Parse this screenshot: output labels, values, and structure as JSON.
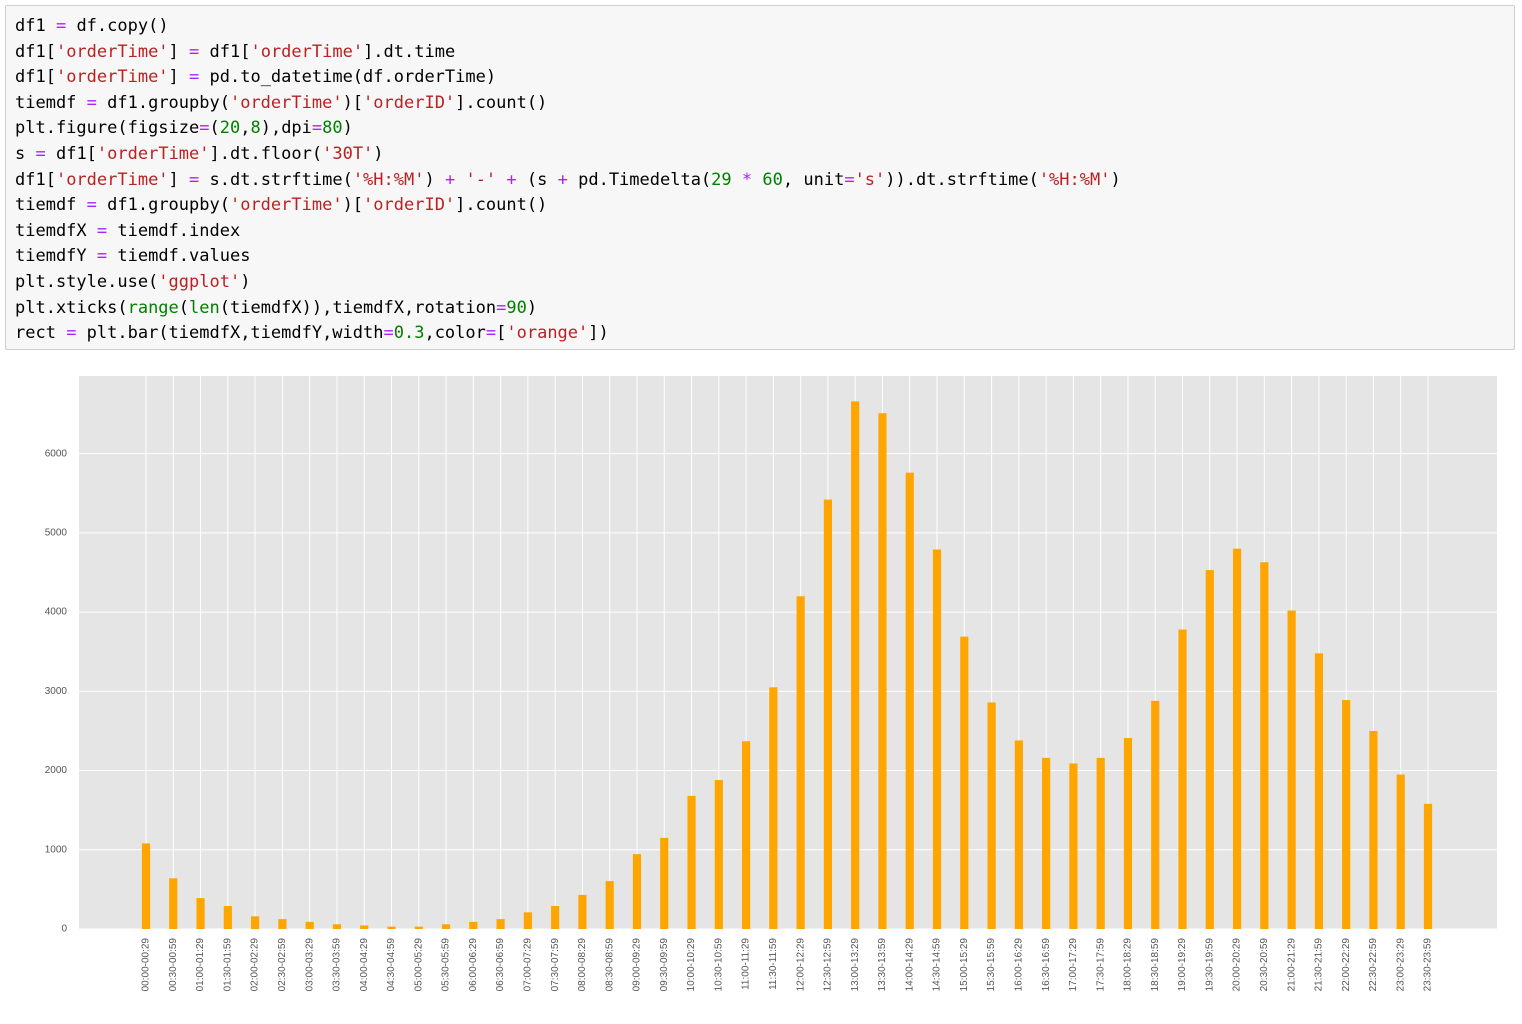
{
  "code": {
    "lines": [
      [
        [
          "df1 ",
          "#000000"
        ],
        [
          "=",
          "#aa22ff"
        ],
        [
          " df.copy()",
          "#000000"
        ]
      ],
      [
        [
          "df1[",
          "#000000"
        ],
        [
          "'orderTime'",
          "#ba2121"
        ],
        [
          "] ",
          "#000000"
        ],
        [
          "=",
          "#aa22ff"
        ],
        [
          " df1[",
          "#000000"
        ],
        [
          "'orderTime'",
          "#ba2121"
        ],
        [
          "].dt.time",
          "#000000"
        ]
      ],
      [
        [
          "df1[",
          "#000000"
        ],
        [
          "'orderTime'",
          "#ba2121"
        ],
        [
          "] ",
          "#000000"
        ],
        [
          "=",
          "#aa22ff"
        ],
        [
          " pd.to_datetime(df.orderTime)",
          "#000000"
        ]
      ],
      [
        [
          "tiemdf ",
          "#000000"
        ],
        [
          "=",
          "#aa22ff"
        ],
        [
          " df1.groupby(",
          "#000000"
        ],
        [
          "'orderTime'",
          "#ba2121"
        ],
        [
          ")[",
          "#000000"
        ],
        [
          "'orderID'",
          "#ba2121"
        ],
        [
          "].count()",
          "#000000"
        ]
      ],
      [
        [
          "plt.figure(figsize",
          "#000000"
        ],
        [
          "=",
          "#aa22ff"
        ],
        [
          "(",
          "#000000"
        ],
        [
          "20",
          "#008000"
        ],
        [
          ",",
          "#000000"
        ],
        [
          "8",
          "#008000"
        ],
        [
          "),dpi",
          "#000000"
        ],
        [
          "=",
          "#aa22ff"
        ],
        [
          "80",
          "#008000"
        ],
        [
          ")",
          "#000000"
        ]
      ],
      [
        [
          "s ",
          "#000000"
        ],
        [
          "=",
          "#aa22ff"
        ],
        [
          " df1[",
          "#000000"
        ],
        [
          "'orderTime'",
          "#ba2121"
        ],
        [
          "].dt.floor(",
          "#000000"
        ],
        [
          "'30T'",
          "#ba2121"
        ],
        [
          ")",
          "#000000"
        ]
      ],
      [
        [
          "df1[",
          "#000000"
        ],
        [
          "'orderTime'",
          "#ba2121"
        ],
        [
          "] ",
          "#000000"
        ],
        [
          "=",
          "#aa22ff"
        ],
        [
          " s.dt.strftime(",
          "#000000"
        ],
        [
          "'%H:%M'",
          "#ba2121"
        ],
        [
          ") ",
          "#000000"
        ],
        [
          "+",
          "#aa22ff"
        ],
        [
          " ",
          "#000000"
        ],
        [
          "'-'",
          "#ba2121"
        ],
        [
          " ",
          "#000000"
        ],
        [
          "+",
          "#aa22ff"
        ],
        [
          " (s ",
          "#000000"
        ],
        [
          "+",
          "#aa22ff"
        ],
        [
          " pd.Timedelta(",
          "#000000"
        ],
        [
          "29",
          "#008000"
        ],
        [
          " ",
          "#000000"
        ],
        [
          "*",
          "#aa22ff"
        ],
        [
          " ",
          "#000000"
        ],
        [
          "60",
          "#008000"
        ],
        [
          ", unit",
          "#000000"
        ],
        [
          "=",
          "#aa22ff"
        ],
        [
          "'s'",
          "#ba2121"
        ],
        [
          ")).dt.strftime(",
          "#000000"
        ],
        [
          "'%H:%M'",
          "#ba2121"
        ],
        [
          ")",
          "#000000"
        ]
      ],
      [
        [
          "tiemdf ",
          "#000000"
        ],
        [
          "=",
          "#aa22ff"
        ],
        [
          " df1.groupby(",
          "#000000"
        ],
        [
          "'orderTime'",
          "#ba2121"
        ],
        [
          ")[",
          "#000000"
        ],
        [
          "'orderID'",
          "#ba2121"
        ],
        [
          "].count()",
          "#000000"
        ]
      ],
      [
        [
          "tiemdfX ",
          "#000000"
        ],
        [
          "=",
          "#aa22ff"
        ],
        [
          " tiemdf.index",
          "#000000"
        ]
      ],
      [
        [
          "tiemdfY ",
          "#000000"
        ],
        [
          "=",
          "#aa22ff"
        ],
        [
          " tiemdf.values",
          "#000000"
        ]
      ],
      [
        [
          "plt.style.use(",
          "#000000"
        ],
        [
          "'ggplot'",
          "#ba2121"
        ],
        [
          ")",
          "#000000"
        ]
      ],
      [
        [
          "plt.xticks(",
          "#000000"
        ],
        [
          "range",
          "#008000"
        ],
        [
          "(",
          "#000000"
        ],
        [
          "len",
          "#008000"
        ],
        [
          "(tiemdfX)),tiemdfX,rotation",
          "#000000"
        ],
        [
          "=",
          "#aa22ff"
        ],
        [
          "90",
          "#008000"
        ],
        [
          ")",
          "#000000"
        ]
      ],
      [
        [
          "rect ",
          "#000000"
        ],
        [
          "=",
          "#aa22ff"
        ],
        [
          " plt.bar(tiemdfX,tiemdfY,width",
          "#000000"
        ],
        [
          "=",
          "#aa22ff"
        ],
        [
          "0.3",
          "#008000"
        ],
        [
          ",color",
          "#000000"
        ],
        [
          "=",
          "#aa22ff"
        ],
        [
          "[",
          "#000000"
        ],
        [
          "'orange'",
          "#ba2121"
        ],
        [
          "])",
          "#000000"
        ]
      ]
    ]
  },
  "chart_data": {
    "type": "bar",
    "color": "orange",
    "grid": true,
    "categories": [
      "00:00-00:29",
      "00:30-00:59",
      "01:00-01:29",
      "01:30-01:59",
      "02:00-02:29",
      "02:30-02:59",
      "03:00-03:29",
      "03:30-03:59",
      "04:00-04:29",
      "04:30-04:59",
      "05:00-05:29",
      "05:30-05:59",
      "06:00-06:29",
      "06:30-06:59",
      "07:00-07:29",
      "07:30-07:59",
      "08:00-08:29",
      "08:30-08:59",
      "09:00-09:29",
      "09:30-09:59",
      "10:00-10:29",
      "10:30-10:59",
      "11:00-11:29",
      "11:30-11:59",
      "12:00-12:29",
      "12:30-12:59",
      "13:00-13:29",
      "13:30-13:59",
      "14:00-14:29",
      "14:30-14:59",
      "15:00-15:29",
      "15:30-15:59",
      "16:00-16:29",
      "16:30-16:59",
      "17:00-17:29",
      "17:30-17:59",
      "18:00-18:29",
      "18:30-18:59",
      "19:00-19:29",
      "19:30-19:59",
      "20:00-20:29",
      "20:30-20:59",
      "21:00-21:29",
      "21:30-21:59",
      "22:00-22:29",
      "22:30-22:59",
      "23:00-23:29",
      "23:30-23:59"
    ],
    "values": [
      1080,
      640,
      390,
      290,
      160,
      125,
      90,
      60,
      45,
      30,
      30,
      60,
      90,
      125,
      210,
      290,
      430,
      605,
      945,
      1150,
      1680,
      1880,
      2370,
      3050,
      4200,
      5420,
      6660,
      6510,
      5760,
      4790,
      3690,
      2860,
      2380,
      2160,
      2090,
      2160,
      2410,
      2880,
      3780,
      4530,
      4800,
      4630,
      4020,
      3480,
      2890,
      2500,
      1950,
      1580
    ],
    "ylim": [
      0,
      6980
    ],
    "yticks": [
      0,
      1000,
      2000,
      3000,
      4000,
      5000,
      6000
    ]
  }
}
